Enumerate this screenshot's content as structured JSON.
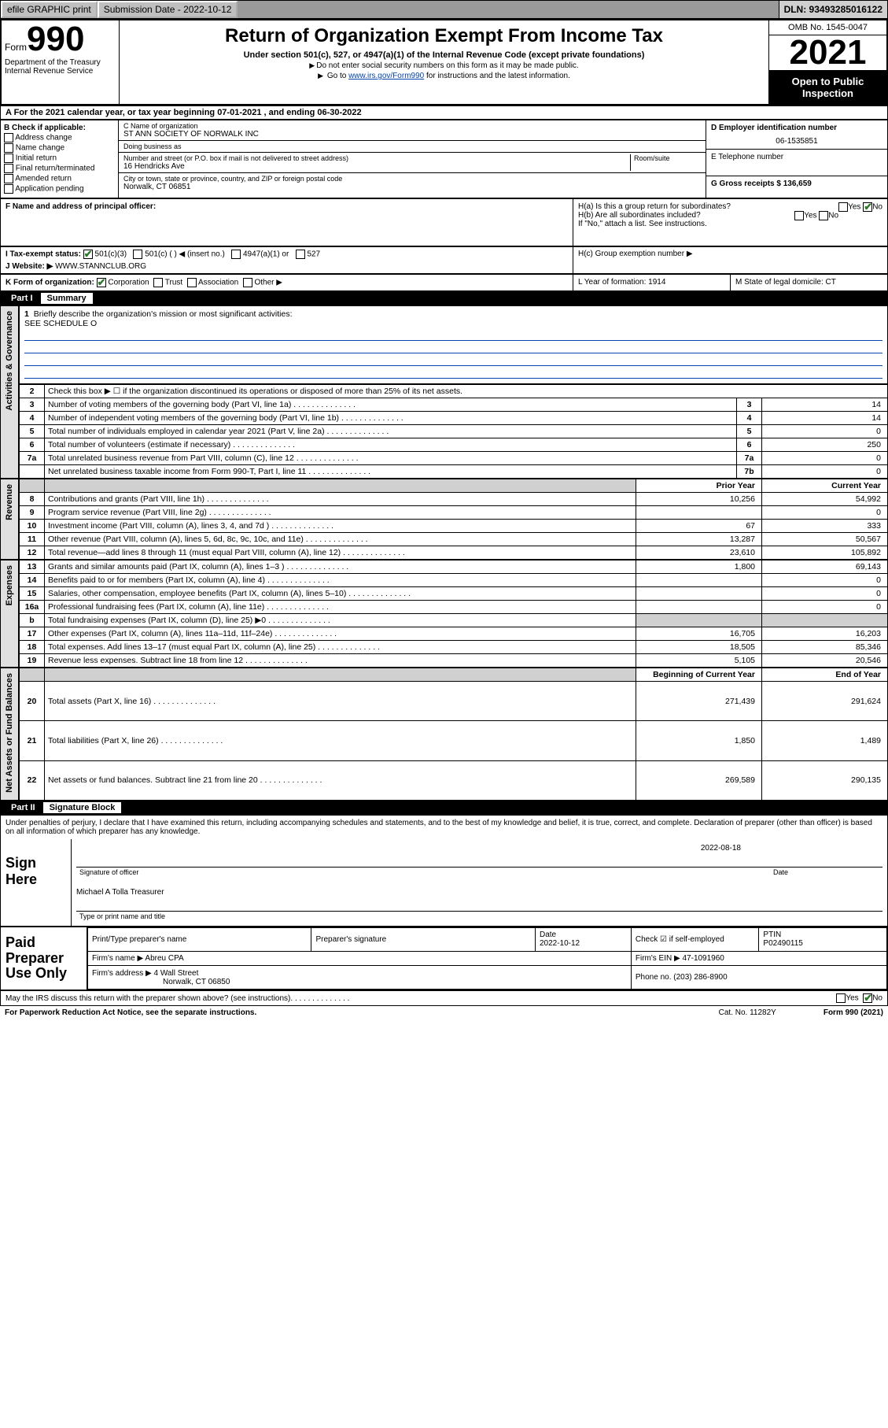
{
  "topbar": {
    "efile": "efile GRAPHIC print",
    "submission_label": "Submission Date - 2022-10-12",
    "dln": "DLN: 93493285016122"
  },
  "header": {
    "form_word": "Form",
    "form_num": "990",
    "title": "Return of Organization Exempt From Income Tax",
    "subtitle": "Under section 501(c), 527, or 4947(a)(1) of the Internal Revenue Code (except private foundations)",
    "note1": "Do not enter social security numbers on this form as it may be made public.",
    "note2_pre": "Go to ",
    "note2_link": "www.irs.gov/Form990",
    "note2_post": " for instructions and the latest information.",
    "dept": "Department of the Treasury\nInternal Revenue Service",
    "omb": "OMB No. 1545-0047",
    "year": "2021",
    "inspect": "Open to Public Inspection"
  },
  "row_a": "A For the 2021 calendar year, or tax year beginning 07-01-2021  , and ending 06-30-2022",
  "col_b": {
    "title": "B Check if applicable:",
    "items": [
      "Address change",
      "Name change",
      "Initial return",
      "Final return/terminated",
      "Amended return",
      "Application pending"
    ]
  },
  "col_c": {
    "name_label": "C Name of organization",
    "name": "ST ANN SOCIETY OF NORWALK INC",
    "dba_label": "Doing business as",
    "dba": "",
    "street_label": "Number and street (or P.O. box if mail is not delivered to street address)",
    "room_label": "Room/suite",
    "street": "16 Hendricks Ave",
    "city_label": "City or town, state or province, country, and ZIP or foreign postal code",
    "city": "Norwalk, CT  06851"
  },
  "col_de": {
    "d_label": "D Employer identification number",
    "d_val": "06-1535851",
    "e_label": "E Telephone number",
    "e_val": "",
    "g_label": "G Gross receipts $ 136,659"
  },
  "row_f": {
    "label": "F Name and address of principal officer:",
    "val": ""
  },
  "row_h": {
    "ha": "H(a)  Is this a group return for subordinates?",
    "ha_yes": "Yes",
    "ha_no": "No",
    "hb": "H(b)  Are all subordinates included?",
    "hb_yes": "Yes",
    "hb_no": "No",
    "hb_note": "If \"No,\" attach a list. See instructions.",
    "hc": "H(c)  Group exemption number ▶"
  },
  "row_i": {
    "label": "I  Tax-exempt status:",
    "opts": [
      "501(c)(3)",
      "501(c) (  ) ◀ (insert no.)",
      "4947(a)(1) or",
      "527"
    ]
  },
  "row_j": {
    "label": "J  Website: ▶",
    "val": "WWW.STANNCLUB.ORG"
  },
  "row_k": {
    "label": "K Form of organization:",
    "opts": [
      "Corporation",
      "Trust",
      "Association",
      "Other ▶"
    ],
    "l": "L Year of formation: 1914",
    "m": "M State of legal domicile: CT"
  },
  "part1": {
    "num": "Part I",
    "title": "Summary"
  },
  "briefly": {
    "num": "1",
    "label": "Briefly describe the organization's mission or most significant activities:",
    "val": "SEE SCHEDULE O"
  },
  "summary_top": [
    {
      "n": "2",
      "d": "Check this box ▶ ☐  if the organization discontinued its operations or disposed of more than 25% of its net assets."
    },
    {
      "n": "3",
      "d": "Number of voting members of the governing body (Part VI, line 1a)",
      "k": "3",
      "v": "14"
    },
    {
      "n": "4",
      "d": "Number of independent voting members of the governing body (Part VI, line 1b)",
      "k": "4",
      "v": "14"
    },
    {
      "n": "5",
      "d": "Total number of individuals employed in calendar year 2021 (Part V, line 2a)",
      "k": "5",
      "v": "0"
    },
    {
      "n": "6",
      "d": "Total number of volunteers (estimate if necessary)",
      "k": "6",
      "v": "250"
    },
    {
      "n": "7a",
      "d": "Total unrelated business revenue from Part VIII, column (C), line 12",
      "k": "7a",
      "v": "0"
    },
    {
      "n": "",
      "d": "Net unrelated business taxable income from Form 990-T, Part I, line 11",
      "k": "7b",
      "v": "0"
    }
  ],
  "yearcols": {
    "prior": "Prior Year",
    "current": "Current Year"
  },
  "revenue": [
    {
      "n": "8",
      "d": "Contributions and grants (Part VIII, line 1h)",
      "p": "10,256",
      "c": "54,992"
    },
    {
      "n": "9",
      "d": "Program service revenue (Part VIII, line 2g)",
      "p": "",
      "c": "0"
    },
    {
      "n": "10",
      "d": "Investment income (Part VIII, column (A), lines 3, 4, and 7d )",
      "p": "67",
      "c": "333"
    },
    {
      "n": "11",
      "d": "Other revenue (Part VIII, column (A), lines 5, 6d, 8c, 9c, 10c, and 11e)",
      "p": "13,287",
      "c": "50,567"
    },
    {
      "n": "12",
      "d": "Total revenue—add lines 8 through 11 (must equal Part VIII, column (A), line 12)",
      "p": "23,610",
      "c": "105,892"
    }
  ],
  "expenses": [
    {
      "n": "13",
      "d": "Grants and similar amounts paid (Part IX, column (A), lines 1–3 )",
      "p": "1,800",
      "c": "69,143"
    },
    {
      "n": "14",
      "d": "Benefits paid to or for members (Part IX, column (A), line 4)",
      "p": "",
      "c": "0"
    },
    {
      "n": "15",
      "d": "Salaries, other compensation, employee benefits (Part IX, column (A), lines 5–10)",
      "p": "",
      "c": "0"
    },
    {
      "n": "16a",
      "d": "Professional fundraising fees (Part IX, column (A), line 11e)",
      "p": "",
      "c": "0"
    },
    {
      "n": "b",
      "d": "Total fundraising expenses (Part IX, column (D), line 25) ▶0",
      "p": "SHADE",
      "c": "SHADE"
    },
    {
      "n": "17",
      "d": "Other expenses (Part IX, column (A), lines 11a–11d, 11f–24e)",
      "p": "16,705",
      "c": "16,203"
    },
    {
      "n": "18",
      "d": "Total expenses. Add lines 13–17 (must equal Part IX, column (A), line 25)",
      "p": "18,505",
      "c": "85,346"
    },
    {
      "n": "19",
      "d": "Revenue less expenses. Subtract line 18 from line 12",
      "p": "5,105",
      "c": "20,546"
    }
  ],
  "netcols": {
    "beg": "Beginning of Current Year",
    "end": "End of Year"
  },
  "net": [
    {
      "n": "20",
      "d": "Total assets (Part X, line 16)",
      "p": "271,439",
      "c": "291,624"
    },
    {
      "n": "21",
      "d": "Total liabilities (Part X, line 26)",
      "p": "1,850",
      "c": "1,489"
    },
    {
      "n": "22",
      "d": "Net assets or fund balances. Subtract line 21 from line 20",
      "p": "269,589",
      "c": "290,135"
    }
  ],
  "sidelabels": {
    "gov": "Activities & Governance",
    "rev": "Revenue",
    "exp": "Expenses",
    "net": "Net Assets or Fund Balances"
  },
  "part2": {
    "num": "Part II",
    "title": "Signature Block"
  },
  "sig": {
    "decl": "Under penalties of perjury, I declare that I have examined this return, including accompanying schedules and statements, and to the best of my knowledge and belief, it is true, correct, and complete. Declaration of preparer (other than officer) is based on all information of which preparer has any knowledge.",
    "sign_here": "Sign Here",
    "sig_officer": "Signature of officer",
    "date_lbl": "Date",
    "date_val": "2022-08-18",
    "name": "Michael A Tolla  Treasurer",
    "name_lbl": "Type or print name and title"
  },
  "paid": {
    "title": "Paid Preparer Use Only",
    "h1": "Print/Type preparer's name",
    "h2": "Preparer's signature",
    "h3": "Date",
    "h3v": "2022-10-12",
    "h4": "Check ☑ if self-employed",
    "h5": "PTIN",
    "h5v": "P02490115",
    "firm_lbl": "Firm's name   ▶",
    "firm": "Abreu CPA",
    "ein_lbl": "Firm's EIN ▶",
    "ein": "47-1091960",
    "addr_lbl": "Firm's address ▶",
    "addr": "4 Wall Street",
    "addr2": "Norwalk, CT  06850",
    "phone_lbl": "Phone no.",
    "phone": "(203) 286-8900"
  },
  "footer": {
    "discuss": "May the IRS discuss this return with the preparer shown above? (see instructions)",
    "yes": "Yes",
    "no": "No",
    "pra": "For Paperwork Reduction Act Notice, see the separate instructions.",
    "cat": "Cat. No. 11282Y",
    "form": "Form 990 (2021)"
  },
  "colors": {
    "link": "#0645ad",
    "shade": "#d0d0d0",
    "topbar": "#cfcfcf",
    "check": "#2a7a2a"
  }
}
